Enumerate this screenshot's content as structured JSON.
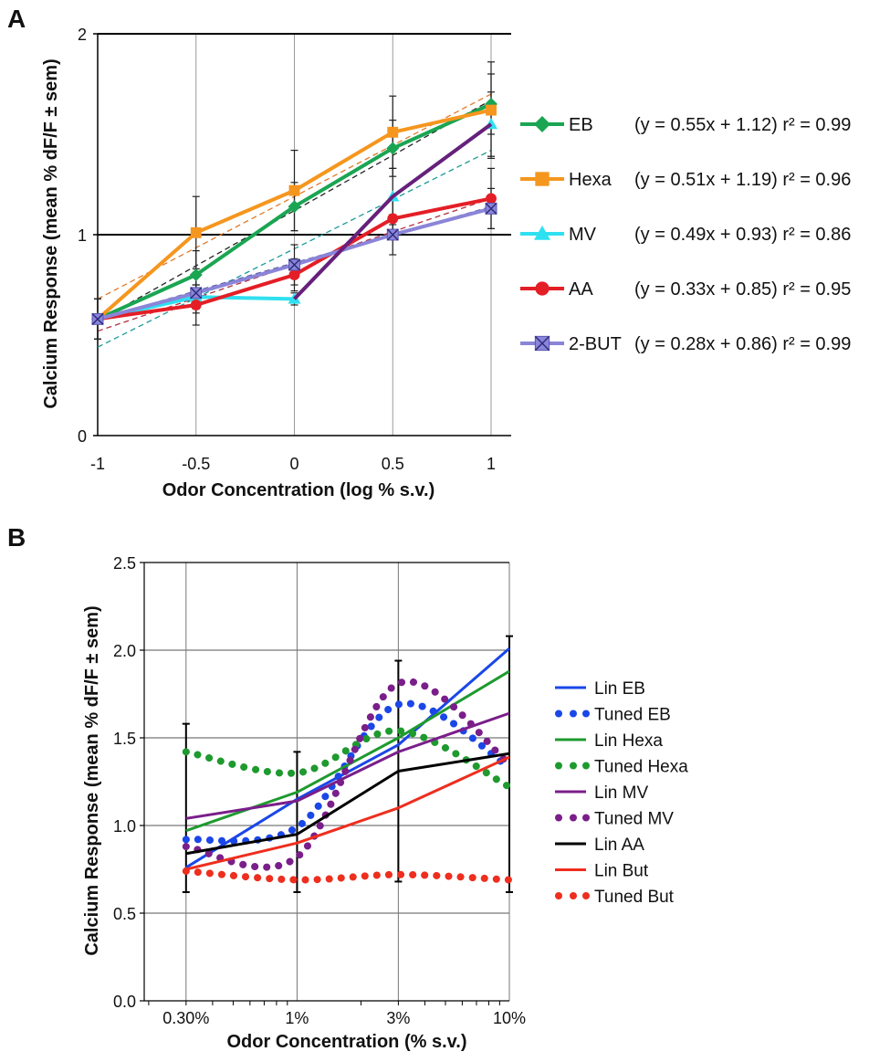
{
  "chart_data": [
    {
      "panel": "A",
      "type": "line",
      "xlabel": "Odor Concentration (log % s.v.)",
      "ylabel": "Calcium Response (mean % dF/F ± sem)",
      "xlim": [
        -1,
        1
      ],
      "ylim": [
        0,
        2
      ],
      "x_ticks": [
        "-1",
        "-0.5",
        "0",
        "0.5",
        "1"
      ],
      "y_ticks": [
        "0",
        "1",
        "2"
      ],
      "reference_line_y": 1,
      "x": [
        -1,
        -0.5,
        0,
        0.5,
        1
      ],
      "series": [
        {
          "name": "EB",
          "equation": "(y = 0.55x + 1.12) r² = 0.99",
          "color": "#1aa552",
          "marker": "diamond",
          "values": [
            0.58,
            0.8,
            1.14,
            1.43,
            1.65
          ],
          "err": [
            0.1,
            0.12,
            0.12,
            0.14,
            0.15
          ],
          "fit": {
            "slope": 0.55,
            "intercept": 1.12,
            "color": "#222222"
          }
        },
        {
          "name": "Hexa",
          "equation": "(y = 0.51x + 1.19) r²  = 0.96",
          "color": "#f5961e",
          "marker": "square",
          "values": [
            0.58,
            1.01,
            1.22,
            1.51,
            1.62
          ],
          "err": [
            0.1,
            0.18,
            0.2,
            0.18,
            0.24
          ],
          "fit": {
            "slope": 0.51,
            "intercept": 1.19,
            "color": "#e07a2a"
          }
        },
        {
          "name": "MV",
          "equation": "(y = 0.49x + 0.93) r²  = 0.86",
          "color": "#2ee0f0",
          "marker": "triangle",
          "values": [
            0.58,
            0.69,
            0.68,
            1.19,
            1.55
          ],
          "err": [
            0.1,
            0.06,
            0.03,
            0.14,
            0.16
          ],
          "fit": {
            "slope": 0.49,
            "intercept": 0.93,
            "color": "#1a9a9a"
          }
        },
        {
          "name": "AA",
          "equation": "(y = 0.33x + 0.85) r²  = 0.95",
          "color": "#e41e26",
          "marker": "circle",
          "values": [
            0.58,
            0.65,
            0.8,
            1.08,
            1.18
          ],
          "err": [
            0.1,
            0.1,
            0.08,
            0.1,
            0.15
          ],
          "fit": {
            "slope": 0.33,
            "intercept": 0.85,
            "color": "#b03040"
          }
        },
        {
          "name": "2-BUT",
          "equation": "(y = 0.28x + 0.86) r²  = 0.99",
          "color": "#8a85d8",
          "marker": "xsquare",
          "values": [
            0.58,
            0.71,
            0.85,
            1.0,
            1.13
          ],
          "err": [
            0.1,
            0.1,
            0.1,
            0.1,
            0.1
          ],
          "fit": {
            "slope": 0.28,
            "intercept": 0.86,
            "color": "#555599"
          }
        },
        {
          "name": "extra",
          "color": "#6a1e7a",
          "marker": "none",
          "legend": false,
          "values": [
            null,
            null,
            0.68,
            1.19,
            1.55
          ]
        }
      ]
    },
    {
      "panel": "B",
      "type": "line",
      "xlabel": "Odor Concentration (% s.v.)",
      "ylabel": "Calcium Response (mean % dF/F ± sem)",
      "x_ticks": [
        "0.30%",
        "1%",
        "3%",
        "10%"
      ],
      "x_log": [
        -0.523,
        0,
        0.477,
        1
      ],
      "xlim_log": [
        -0.72,
        1
      ],
      "ylim": [
        0,
        2.5
      ],
      "y_ticks": [
        "0.0",
        "0.5",
        "1.0",
        "1.5",
        "2.0",
        "2.5"
      ],
      "series": [
        {
          "name": "Lin EB",
          "style": "solid",
          "color": "#1a47e8",
          "values": [
            0.76,
            1.15,
            1.46,
            2.01
          ]
        },
        {
          "name": "Tuned EB",
          "style": "dotted",
          "color": "#1a47e8",
          "values": [
            0.92,
            0.99,
            1.69,
            1.33
          ]
        },
        {
          "name": "Lin Hexa",
          "style": "solid",
          "color": "#1e9a2e",
          "values": [
            0.97,
            1.19,
            1.5,
            1.88
          ]
        },
        {
          "name": "Tuned Hexa",
          "style": "dotted",
          "color": "#1e9a2e",
          "values": [
            1.42,
            1.3,
            1.54,
            1.22
          ]
        },
        {
          "name": "Lin MV",
          "style": "solid",
          "color": "#7a1e8a",
          "values": [
            1.04,
            1.14,
            1.42,
            1.64
          ]
        },
        {
          "name": "Tuned MV",
          "style": "dotted",
          "color": "#7a1e8a",
          "values": [
            0.88,
            0.82,
            1.81,
            1.35
          ]
        },
        {
          "name": "Lin AA",
          "style": "solid",
          "color": "#000000",
          "values": [
            0.84,
            0.95,
            1.31,
            1.41
          ]
        },
        {
          "name": "Lin But",
          "style": "solid",
          "color": "#ee2e1e",
          "values": [
            0.75,
            0.9,
            1.1,
            1.39
          ]
        },
        {
          "name": "Tuned But",
          "style": "dotted",
          "color": "#ee2e1e",
          "values": [
            0.74,
            0.69,
            0.72,
            0.69
          ]
        }
      ],
      "error_bars": [
        {
          "x": 0,
          "lo": 0.62,
          "hi": 1.58
        },
        {
          "x": 1,
          "lo": 0.62,
          "hi": 1.42
        },
        {
          "x": 2,
          "lo": 0.68,
          "hi": 1.94
        },
        {
          "x": 3,
          "lo": 0.62,
          "hi": 2.08
        }
      ]
    }
  ],
  "labels": {
    "panel_a": "A",
    "panel_b": "B",
    "a_xlabel": "Odor Concentration (log % s.v.)",
    "a_ylabel": "Calcium Response (mean % dF/F ± sem)",
    "b_xlabel": "Odor Concentration (% s.v.)",
    "b_ylabel": "Calcium Response (mean % dF/F ± sem)"
  }
}
